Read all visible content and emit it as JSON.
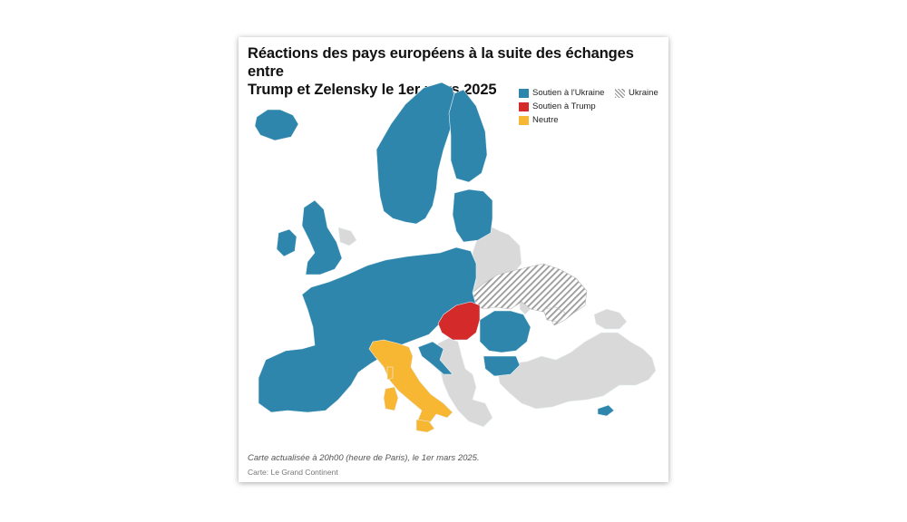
{
  "title_lines": [
    "Réactions des pays européens à la suite des échanges entre",
    "Trump et Zelensky le 1er mars 2025"
  ],
  "legend": [
    {
      "label": "Soutien à l'Ukraine",
      "color": "#2e86ad",
      "pattern": "solid"
    },
    {
      "label": "Ukraine",
      "color": "#9a9a9a",
      "pattern": "hatch"
    },
    {
      "label": "Soutien à Trump",
      "color": "#d42a2a",
      "pattern": "solid"
    },
    {
      "label": "Neutre",
      "color": "#f8b733",
      "pattern": "solid"
    }
  ],
  "map_colors": {
    "support_ukraine": "#2e86ad",
    "support_trump": "#d42a2a",
    "neutral": "#f8b733",
    "no_data": "#d9d9d9",
    "ukraine_hatch": "#9a9a9a",
    "border": "#e8f1f5"
  },
  "note": "Carte actualisée à 20h00 (heure de Paris), le 1er mars 2025.",
  "credit": "Carte: Le Grand Continent"
}
